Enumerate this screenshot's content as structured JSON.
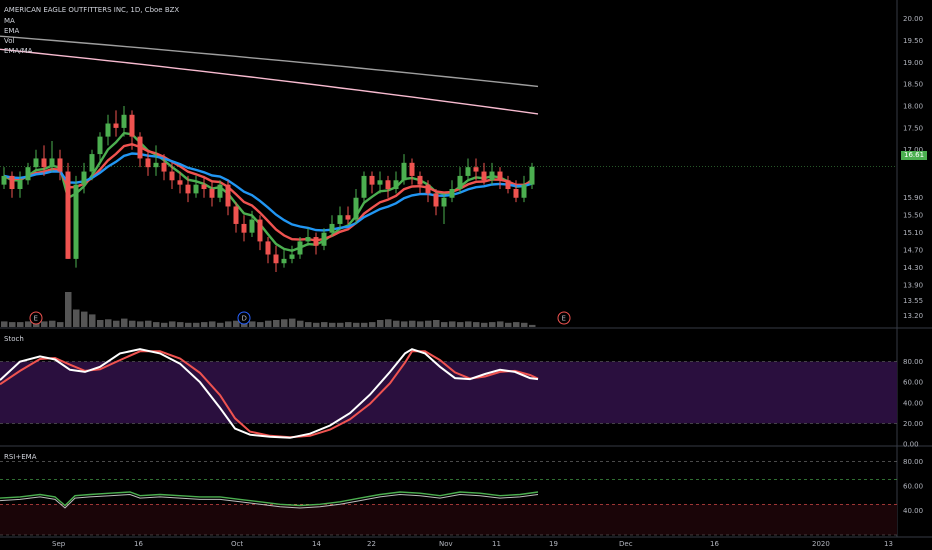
{
  "header": {
    "symbol": "AMERICAN EAGLE OUTFITTERS INC, 1D, Cboe BZX",
    "indicators": [
      "MA",
      "EMA",
      "Vol",
      "EMA/MA"
    ]
  },
  "price_badge": "16.61",
  "events": [
    {
      "label": "E",
      "color": "#ef5350",
      "date_index": 4
    },
    {
      "label": "D",
      "color": "#2962ff",
      "date_index": 30
    },
    {
      "label": "E",
      "color": "#ef5350",
      "date_index": 70
    }
  ],
  "panes": {
    "stoch": {
      "title": "Stoch"
    },
    "rsi": {
      "title": "RSI+EMA"
    }
  },
  "chart_data": [
    {
      "type": "candlestick",
      "title": "AMERICAN EAGLE OUTFITTERS INC, 1D, Cboe BZX",
      "y_ticks": [
        "20.00",
        "19.50",
        "19.00",
        "18.50",
        "18.00",
        "17.50",
        "17.00",
        "16.61",
        "15.90",
        "15.50",
        "15.10",
        "14.70",
        "14.30",
        "13.90",
        "13.55",
        "13.20"
      ],
      "x_ticks": [
        "Sep",
        "16",
        "Oct",
        "14",
        "22",
        "Nov",
        "11",
        "19",
        "Dec",
        "16",
        "2020",
        "13"
      ],
      "last_price": 16.61,
      "candles": [
        [
          16.2,
          16.4,
          16.6,
          16.1
        ],
        [
          16.4,
          16.1,
          16.5,
          15.9
        ],
        [
          16.1,
          16.3,
          16.5,
          15.9
        ],
        [
          16.3,
          16.6,
          16.7,
          16.2
        ],
        [
          16.6,
          16.8,
          17.0,
          16.5
        ],
        [
          16.8,
          16.6,
          17.1,
          16.4
        ],
        [
          16.6,
          16.8,
          17.2,
          16.5
        ],
        [
          16.8,
          16.5,
          17.0,
          16.3
        ],
        [
          16.5,
          14.5,
          16.7,
          14.5
        ],
        [
          14.5,
          16.2,
          16.4,
          14.3
        ],
        [
          16.2,
          16.5,
          16.7,
          16.0
        ],
        [
          16.5,
          16.9,
          17.0,
          16.3
        ],
        [
          16.9,
          17.3,
          17.4,
          16.7
        ],
        [
          17.3,
          17.6,
          17.8,
          17.1
        ],
        [
          17.6,
          17.5,
          17.9,
          17.3
        ],
        [
          17.5,
          17.8,
          18.0,
          17.3
        ],
        [
          17.8,
          17.3,
          17.9,
          17.0
        ],
        [
          17.3,
          16.8,
          17.4,
          16.6
        ],
        [
          16.8,
          16.6,
          17.0,
          16.4
        ],
        [
          16.6,
          16.7,
          17.1,
          16.4
        ],
        [
          16.7,
          16.5,
          16.9,
          16.3
        ],
        [
          16.5,
          16.3,
          16.7,
          16.1
        ],
        [
          16.3,
          16.2,
          16.5,
          16.0
        ],
        [
          16.2,
          16.0,
          16.4,
          15.8
        ],
        [
          16.0,
          16.2,
          16.4,
          15.9
        ],
        [
          16.2,
          16.1,
          16.4,
          15.9
        ],
        [
          16.1,
          15.9,
          16.3,
          15.7
        ],
        [
          15.9,
          16.2,
          16.3,
          15.8
        ],
        [
          16.2,
          15.7,
          16.3,
          15.5
        ],
        [
          15.7,
          15.3,
          15.8,
          15.1
        ],
        [
          15.3,
          15.1,
          15.5,
          14.9
        ],
        [
          15.1,
          15.4,
          15.6,
          15.0
        ],
        [
          15.4,
          14.9,
          15.5,
          14.7
        ],
        [
          14.9,
          14.6,
          15.0,
          14.4
        ],
        [
          14.6,
          14.4,
          14.8,
          14.2
        ],
        [
          14.4,
          14.5,
          14.7,
          14.3
        ],
        [
          14.5,
          14.6,
          14.8,
          14.4
        ],
        [
          14.6,
          14.9,
          15.0,
          14.5
        ],
        [
          14.9,
          15.0,
          15.2,
          14.8
        ],
        [
          15.0,
          14.8,
          15.1,
          14.6
        ],
        [
          14.8,
          15.1,
          15.2,
          14.7
        ],
        [
          15.1,
          15.3,
          15.5,
          15.0
        ],
        [
          15.3,
          15.5,
          15.7,
          15.2
        ],
        [
          15.5,
          15.4,
          15.7,
          15.3
        ],
        [
          15.4,
          15.9,
          16.1,
          15.3
        ],
        [
          15.9,
          16.4,
          16.5,
          15.8
        ],
        [
          16.4,
          16.2,
          16.5,
          16.0
        ],
        [
          16.2,
          16.3,
          16.5,
          16.0
        ],
        [
          16.3,
          16.1,
          16.4,
          15.9
        ],
        [
          16.1,
          16.3,
          16.5,
          16.0
        ],
        [
          16.3,
          16.7,
          16.9,
          16.2
        ],
        [
          16.7,
          16.4,
          16.8,
          16.2
        ],
        [
          16.4,
          16.2,
          16.5,
          16.0
        ],
        [
          16.2,
          16.0,
          16.3,
          15.8
        ],
        [
          16.0,
          15.7,
          16.1,
          15.5
        ],
        [
          15.7,
          15.9,
          16.0,
          15.3
        ],
        [
          15.9,
          16.1,
          16.3,
          15.8
        ],
        [
          16.1,
          16.4,
          16.6,
          16.0
        ],
        [
          16.4,
          16.6,
          16.8,
          16.3
        ],
        [
          16.6,
          16.5,
          16.8,
          16.3
        ],
        [
          16.5,
          16.3,
          16.7,
          16.2
        ],
        [
          16.3,
          16.5,
          16.7,
          16.2
        ],
        [
          16.5,
          16.3,
          16.6,
          16.1
        ],
        [
          16.3,
          16.1,
          16.4,
          16.0
        ],
        [
          16.1,
          15.9,
          16.3,
          15.8
        ],
        [
          15.9,
          16.2,
          16.4,
          15.8
        ],
        [
          16.2,
          16.61,
          16.7,
          16.1
        ]
      ],
      "series": [
        {
          "name": "MA",
          "color": "#9e9e9e",
          "start": 19.6,
          "end": 18.45
        },
        {
          "name": "EMA",
          "color": "#f8bbd0",
          "start": 19.3,
          "end": 17.82
        }
      ],
      "volume": [
        0.08,
        0.07,
        0.07,
        0.08,
        0.09,
        0.08,
        0.09,
        0.07,
        0.5,
        0.25,
        0.22,
        0.18,
        0.1,
        0.11,
        0.09,
        0.12,
        0.09,
        0.08,
        0.09,
        0.07,
        0.06,
        0.08,
        0.07,
        0.06,
        0.06,
        0.07,
        0.08,
        0.06,
        0.08,
        0.09,
        0.1,
        0.08,
        0.07,
        0.09,
        0.1,
        0.11,
        0.12,
        0.09,
        0.07,
        0.06,
        0.07,
        0.06,
        0.06,
        0.07,
        0.06,
        0.06,
        0.07,
        0.1,
        0.11,
        0.09,
        0.08,
        0.09,
        0.08,
        0.09,
        0.1,
        0.07,
        0.08,
        0.07,
        0.08,
        0.07,
        0.06,
        0.07,
        0.08,
        0.06,
        0.07,
        0.06,
        0.03
      ]
    },
    {
      "type": "line",
      "title": "Stoch",
      "y_ticks": [
        "80.00",
        "60.00",
        "40.00",
        "20.00",
        "0.00"
      ],
      "ylim": [
        0,
        100
      ],
      "band": [
        20,
        80
      ]
    },
    {
      "type": "line",
      "title": "RSI+EMA",
      "y_ticks": [
        "80.00",
        "60.00",
        "40.00"
      ],
      "ylim": [
        20,
        90
      ],
      "levels": [
        80,
        65,
        45,
        20
      ]
    }
  ],
  "colors": {
    "up": "#26a69a",
    "up_green": "#4caf50",
    "down": "#ef5350",
    "ema_fast": "#4caf50",
    "ema_mid": "#ef5350",
    "ema_slow": "#2196f3",
    "stoch_k": "#ffffff",
    "stoch_d": "#ef5350",
    "band_fill": "#2a0f3e"
  }
}
